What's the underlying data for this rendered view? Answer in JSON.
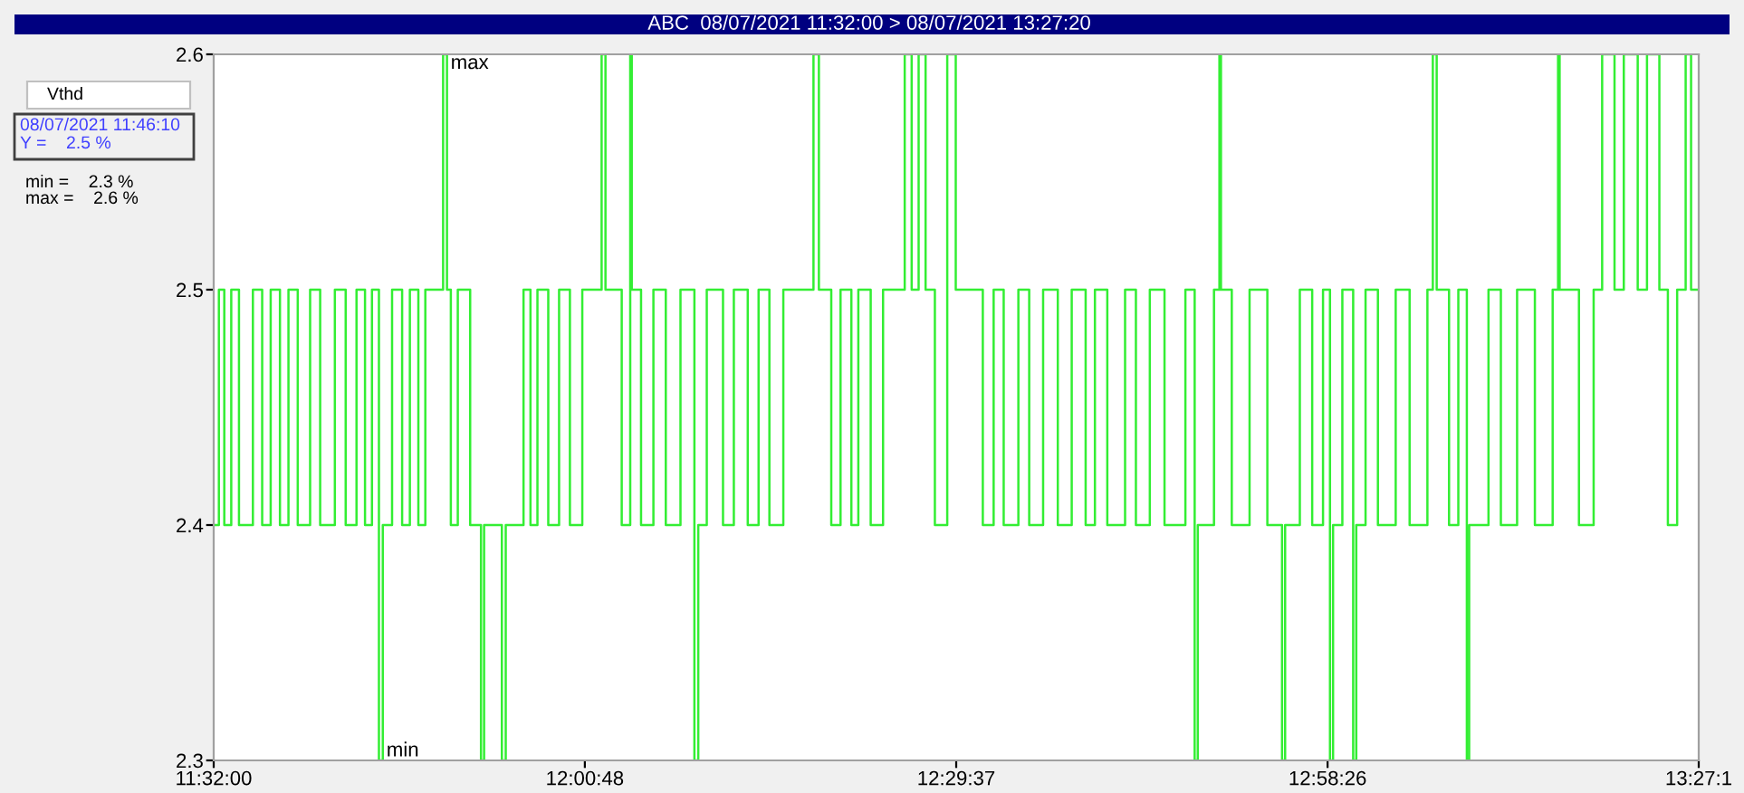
{
  "chart_data": {
    "type": "step",
    "title": "ABC  08/07/2021 11:32:00 > 08/07/2021 13:27:20",
    "annotations": [
      "Vthd",
      "08/07/2021 11:46:10",
      "Y =    2.5 %",
      "min =    2.3 %",
      "max =    2.6 %",
      {
        "text": "max",
        "x": 11.83,
        "y": 2.6
      },
      {
        "text": "min",
        "x": 11.747,
        "y": 2.3
      }
    ],
    "x": [
      11.5333,
      11.54,
      11.547,
      11.556,
      11.566,
      11.584,
      11.596,
      11.607,
      11.619,
      11.63,
      11.642,
      11.658,
      11.671,
      11.69,
      11.704,
      11.718,
      11.729,
      11.738,
      11.747,
      11.752,
      11.764,
      11.777,
      11.787,
      11.798,
      11.807,
      11.83,
      11.835,
      11.84,
      11.849,
      11.865,
      11.879,
      11.883,
      11.906,
      11.911,
      11.934,
      11.943,
      11.952,
      11.966,
      11.98,
      11.994,
      12.01,
      12.035,
      12.04,
      12.061,
      12.072,
      12.074,
      12.086,
      12.102,
      12.118,
      12.137,
      12.155,
      12.16,
      12.171,
      12.192,
      12.206,
      12.224,
      12.238,
      12.252,
      12.27,
      12.309,
      12.316,
      12.332,
      12.344,
      12.358,
      12.367,
      12.383,
      12.399,
      12.427,
      12.436,
      12.445,
      12.454,
      12.466,
      12.482,
      12.493,
      12.528,
      12.542,
      12.555,
      12.574,
      12.588,
      12.606,
      12.625,
      12.643,
      12.661,
      12.673,
      12.689,
      12.712,
      12.726,
      12.744,
      12.763,
      12.79,
      12.802,
      12.806,
      12.827,
      12.834,
      12.836,
      12.85,
      12.873,
      12.896,
      12.915,
      12.919,
      12.938,
      12.954,
      12.968,
      12.977,
      12.981,
      12.993,
      13.007,
      13.011,
      13.023,
      13.039,
      13.062,
      13.08,
      13.103,
      13.11,
      13.115,
      13.131,
      13.143,
      13.154,
      13.157,
      13.182,
      13.198,
      13.219,
      13.242,
      13.265,
      13.272,
      13.274,
      13.299,
      13.318,
      13.329,
      13.345,
      13.357,
      13.375,
      13.387,
      13.403,
      13.414,
      13.426,
      13.437,
      13.444,
      13.453
    ],
    "series": [
      {
        "color": "#33ee33",
        "values": [
          2.4,
          2.5,
          2.4,
          2.5,
          2.4,
          2.5,
          2.4,
          2.5,
          2.4,
          2.5,
          2.4,
          2.5,
          2.4,
          2.5,
          2.4,
          2.5,
          2.4,
          2.5,
          2.3,
          2.4,
          2.5,
          2.4,
          2.5,
          2.4,
          2.5,
          2.6,
          2.5,
          2.4,
          2.5,
          2.4,
          2.3,
          2.4,
          2.3,
          2.4,
          2.5,
          2.4,
          2.5,
          2.4,
          2.5,
          2.4,
          2.5,
          2.6,
          2.5,
          2.4,
          2.6,
          2.5,
          2.4,
          2.5,
          2.4,
          2.5,
          2.3,
          2.4,
          2.5,
          2.4,
          2.5,
          2.4,
          2.5,
          2.4,
          2.5,
          2.6,
          2.5,
          2.4,
          2.5,
          2.4,
          2.5,
          2.4,
          2.5,
          2.6,
          2.5,
          2.6,
          2.5,
          2.4,
          2.6,
          2.5,
          2.4,
          2.5,
          2.4,
          2.5,
          2.4,
          2.5,
          2.4,
          2.5,
          2.4,
          2.5,
          2.4,
          2.5,
          2.4,
          2.5,
          2.4,
          2.5,
          2.3,
          2.4,
          2.5,
          2.6,
          2.5,
          2.4,
          2.5,
          2.4,
          2.3,
          2.4,
          2.5,
          2.4,
          2.5,
          2.3,
          2.4,
          2.5,
          2.3,
          2.4,
          2.5,
          2.4,
          2.5,
          2.4,
          2.5,
          2.6,
          2.5,
          2.4,
          2.5,
          2.3,
          2.4,
          2.5,
          2.4,
          2.5,
          2.4,
          2.5,
          2.6,
          2.5,
          2.4,
          2.5,
          2.6,
          2.5,
          2.6,
          2.5,
          2.6,
          2.5,
          2.4,
          2.5,
          2.6,
          2.5,
          2.5
        ]
      }
    ],
    "xlim": [
      11.5333,
      13.4539
    ],
    "xticks": [
      {
        "value": 11.5333,
        "label": "11:32:00"
      },
      {
        "value": 12.0133,
        "label": "12:00:48"
      },
      {
        "value": 12.4936,
        "label": "12:29:37"
      },
      {
        "value": 12.9739,
        "label": "12:58:26"
      },
      {
        "value": 13.4539,
        "label": "13:27:1"
      }
    ],
    "ylim": [
      2.3,
      2.6
    ],
    "yticks": [
      2.3,
      2.4,
      2.5,
      2.6
    ],
    "grid": false,
    "legend": false
  }
}
